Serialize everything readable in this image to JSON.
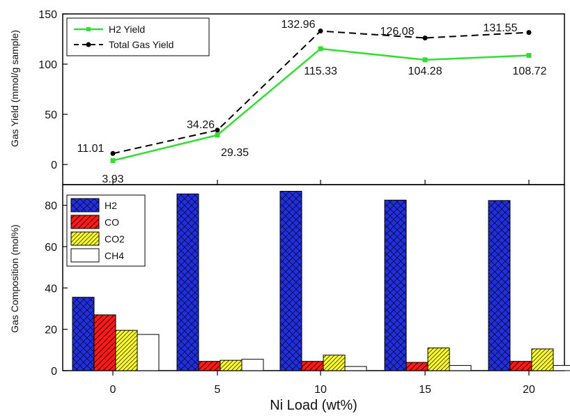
{
  "chart_data": [
    {
      "type": "line",
      "ylabel": "Gas Yield (mmol/g sample)",
      "ylim": [
        -20,
        150
      ],
      "yticks": [
        0,
        50,
        100,
        150
      ],
      "x": [
        0,
        5,
        10,
        15,
        20
      ],
      "legend_position": "top-left",
      "series": [
        {
          "name": "H2 Yield",
          "values": [
            3.93,
            29.35,
            115.33,
            104.28,
            108.72
          ],
          "labels": [
            "3.93",
            "29.35",
            "115.33",
            "104.28",
            "108.72"
          ],
          "color": "#33dd33",
          "style": "solid",
          "marker": "square"
        },
        {
          "name": "Total Gas Yield",
          "values": [
            11.01,
            34.26,
            132.96,
            126.08,
            131.55
          ],
          "labels": [
            "11.01",
            "34.26",
            "132.96",
            "126.08",
            "131.55"
          ],
          "color": "#000000",
          "style": "dashed",
          "marker": "circle"
        }
      ]
    },
    {
      "type": "bar",
      "ylabel": "Gas Composition (mol%)",
      "xlabel": "Ni Load (wt%)",
      "ylim": [
        0,
        90
      ],
      "yticks": [
        0,
        20,
        40,
        60,
        80
      ],
      "categories": [
        "0",
        "5",
        "10",
        "15",
        "20"
      ],
      "legend_position": "top-left",
      "series": [
        {
          "name": "H2",
          "values": [
            35.5,
            85.5,
            86.8,
            82.5,
            82.3
          ],
          "color": "#2030e0",
          "pattern": "crosshatch"
        },
        {
          "name": "CO",
          "values": [
            27,
            4.5,
            4.5,
            4,
            4.5
          ],
          "color": "#ff1a1a",
          "pattern": "diagonal"
        },
        {
          "name": "CO2",
          "values": [
            19.5,
            5,
            7.5,
            11,
            10.5
          ],
          "color": "#ffff33",
          "pattern": "diagonal-dense"
        },
        {
          "name": "CH4",
          "values": [
            17.5,
            5.5,
            2,
            2.5,
            2.5
          ],
          "color": "#ffffff",
          "pattern": "none"
        }
      ]
    }
  ]
}
